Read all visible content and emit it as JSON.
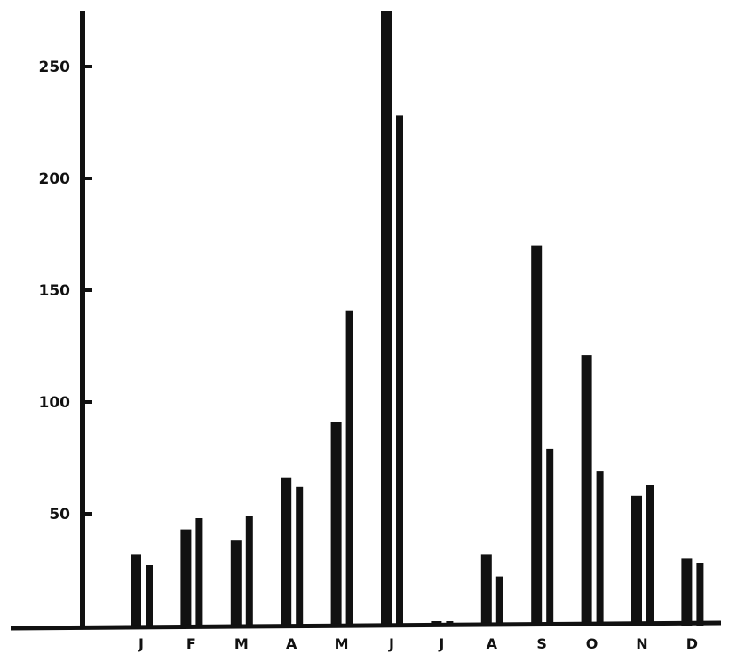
{
  "chart_data": {
    "type": "bar",
    "title": "",
    "xlabel": "",
    "ylabel": "",
    "categories": [
      "J",
      "F",
      "M",
      "A",
      "M",
      "J",
      "J",
      "A",
      "S",
      "O",
      "N",
      "D"
    ],
    "series": [
      {
        "values": [
          32,
          43,
          38,
          66,
          91,
          280,
          2,
          32,
          170,
          121,
          58,
          30
        ]
      },
      {
        "values": [
          27,
          48,
          49,
          62,
          141,
          228,
          2,
          22,
          79,
          69,
          63,
          28
        ]
      }
    ],
    "ylim": [
      0,
      275
    ],
    "yticks": [
      50,
      100,
      150,
      200,
      250
    ],
    "grid": false,
    "colors": {
      "bar": "#111111",
      "axis": "#111111"
    }
  }
}
